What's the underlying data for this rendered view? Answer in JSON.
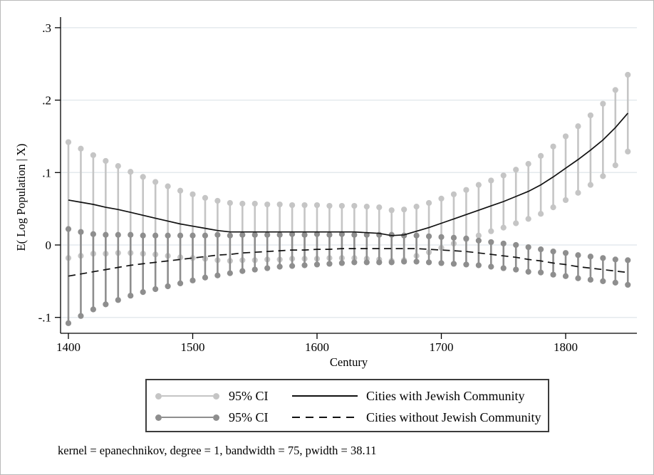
{
  "figure": {
    "background": "#ffffff",
    "border_color": "#b9b9b9"
  },
  "chart_data": {
    "type": "line",
    "title": "",
    "xlabel": "Century",
    "ylabel": "E( Log Population | X)",
    "note": "kernel = epanechnikov, degree = 1, bandwidth = 75, pwidth = 38.11",
    "grid": true,
    "legend_position": "bottom",
    "xlim": [
      1393,
      1858
    ],
    "ylim": [
      -0.122,
      0.315
    ],
    "x_ticks": [
      {
        "value": 1400,
        "label": "1400"
      },
      {
        "value": 1500,
        "label": "1500"
      },
      {
        "value": 1600,
        "label": "1600"
      },
      {
        "value": 1700,
        "label": "1700"
      },
      {
        "value": 1800,
        "label": "1800"
      }
    ],
    "y_ticks": [
      {
        "value": 0.3,
        "label": ".3"
      },
      {
        "value": 0.2,
        "label": ".2"
      },
      {
        "value": 0.1,
        "label": ".1"
      },
      {
        "value": 0.0,
        "label": "0"
      },
      {
        "value": -0.1,
        "label": "-.1"
      }
    ],
    "colors": {
      "grid": "#e4eaed",
      "axis": "#000000",
      "ci_with": "#c5c5c5",
      "ci_without": "#8e8e8e",
      "line": "#111111"
    },
    "x": [
      1400,
      1410,
      1420,
      1430,
      1440,
      1450,
      1460,
      1470,
      1480,
      1490,
      1500,
      1510,
      1520,
      1530,
      1540,
      1550,
      1560,
      1570,
      1580,
      1590,
      1600,
      1610,
      1620,
      1630,
      1640,
      1650,
      1660,
      1670,
      1680,
      1690,
      1700,
      1710,
      1720,
      1730,
      1740,
      1750,
      1760,
      1770,
      1780,
      1790,
      1800,
      1810,
      1820,
      1830,
      1840,
      1850
    ],
    "series": [
      {
        "name": "Cities with Jewish Community",
        "style": "solid",
        "color": "#111111",
        "ci_label": "95% CI",
        "ci_color": "#c5c5c5",
        "values": [
          0.062,
          0.059,
          0.056,
          0.052,
          0.049,
          0.045,
          0.041,
          0.037,
          0.033,
          0.029,
          0.026,
          0.023,
          0.02,
          0.018,
          0.018,
          0.018,
          0.018,
          0.018,
          0.018,
          0.018,
          0.018,
          0.018,
          0.018,
          0.018,
          0.017,
          0.016,
          0.013,
          0.014,
          0.019,
          0.024,
          0.03,
          0.036,
          0.042,
          0.048,
          0.054,
          0.06,
          0.067,
          0.074,
          0.083,
          0.094,
          0.106,
          0.118,
          0.131,
          0.145,
          0.162,
          0.182
        ],
        "ci_upper": [
          0.142,
          0.133,
          0.124,
          0.116,
          0.109,
          0.101,
          0.094,
          0.087,
          0.081,
          0.075,
          0.07,
          0.065,
          0.061,
          0.058,
          0.057,
          0.057,
          0.056,
          0.056,
          0.055,
          0.055,
          0.055,
          0.054,
          0.054,
          0.054,
          0.053,
          0.052,
          0.048,
          0.049,
          0.053,
          0.058,
          0.064,
          0.07,
          0.076,
          0.083,
          0.089,
          0.096,
          0.104,
          0.112,
          0.123,
          0.136,
          0.15,
          0.164,
          0.179,
          0.195,
          0.214,
          0.235
        ],
        "ci_lower": [
          -0.018,
          -0.015,
          -0.012,
          -0.012,
          -0.011,
          -0.011,
          -0.012,
          -0.013,
          -0.015,
          -0.017,
          -0.018,
          -0.019,
          -0.021,
          -0.022,
          -0.021,
          -0.021,
          -0.02,
          -0.02,
          -0.019,
          -0.019,
          -0.019,
          -0.018,
          -0.018,
          -0.018,
          -0.019,
          -0.02,
          -0.022,
          -0.021,
          -0.015,
          -0.01,
          -0.004,
          0.002,
          0.008,
          0.013,
          0.019,
          0.024,
          0.03,
          0.036,
          0.043,
          0.052,
          0.062,
          0.072,
          0.083,
          0.095,
          0.11,
          0.129
        ]
      },
      {
        "name": "Cities without Jewish Community",
        "style": "dashed",
        "color": "#111111",
        "ci_label": "95% CI",
        "ci_color": "#8e8e8e",
        "values": [
          -0.043,
          -0.04,
          -0.037,
          -0.034,
          -0.031,
          -0.028,
          -0.026,
          -0.024,
          -0.022,
          -0.02,
          -0.018,
          -0.016,
          -0.014,
          -0.013,
          -0.011,
          -0.01,
          -0.009,
          -0.008,
          -0.007,
          -0.007,
          -0.006,
          -0.006,
          -0.005,
          -0.005,
          -0.005,
          -0.005,
          -0.005,
          -0.005,
          -0.005,
          -0.006,
          -0.007,
          -0.008,
          -0.009,
          -0.011,
          -0.013,
          -0.015,
          -0.017,
          -0.02,
          -0.022,
          -0.025,
          -0.027,
          -0.03,
          -0.032,
          -0.034,
          -0.036,
          -0.038
        ],
        "ci_upper": [
          0.022,
          0.018,
          0.015,
          0.014,
          0.014,
          0.014,
          0.013,
          0.013,
          0.013,
          0.013,
          0.013,
          0.013,
          0.014,
          0.013,
          0.014,
          0.014,
          0.014,
          0.014,
          0.015,
          0.014,
          0.015,
          0.014,
          0.015,
          0.014,
          0.014,
          0.014,
          0.014,
          0.013,
          0.013,
          0.012,
          0.011,
          0.01,
          0.009,
          0.006,
          0.004,
          0.002,
          0.0,
          -0.003,
          -0.006,
          -0.009,
          -0.011,
          -0.014,
          -0.016,
          -0.018,
          -0.02,
          -0.021
        ],
        "ci_lower": [
          -0.108,
          -0.098,
          -0.089,
          -0.082,
          -0.076,
          -0.07,
          -0.065,
          -0.061,
          -0.057,
          -0.053,
          -0.049,
          -0.045,
          -0.042,
          -0.039,
          -0.036,
          -0.034,
          -0.032,
          -0.03,
          -0.029,
          -0.028,
          -0.027,
          -0.026,
          -0.025,
          -0.024,
          -0.024,
          -0.024,
          -0.024,
          -0.023,
          -0.023,
          -0.024,
          -0.025,
          -0.026,
          -0.027,
          -0.028,
          -0.03,
          -0.032,
          -0.034,
          -0.037,
          -0.038,
          -0.041,
          -0.043,
          -0.046,
          -0.048,
          -0.05,
          -0.052,
          -0.055
        ]
      }
    ]
  },
  "legend": {
    "rows": [
      {
        "ci_label": "95% CI",
        "line_label": "Cities with Jewish Community"
      },
      {
        "ci_label": "95% CI",
        "line_label": "Cities without Jewish Community"
      }
    ]
  }
}
